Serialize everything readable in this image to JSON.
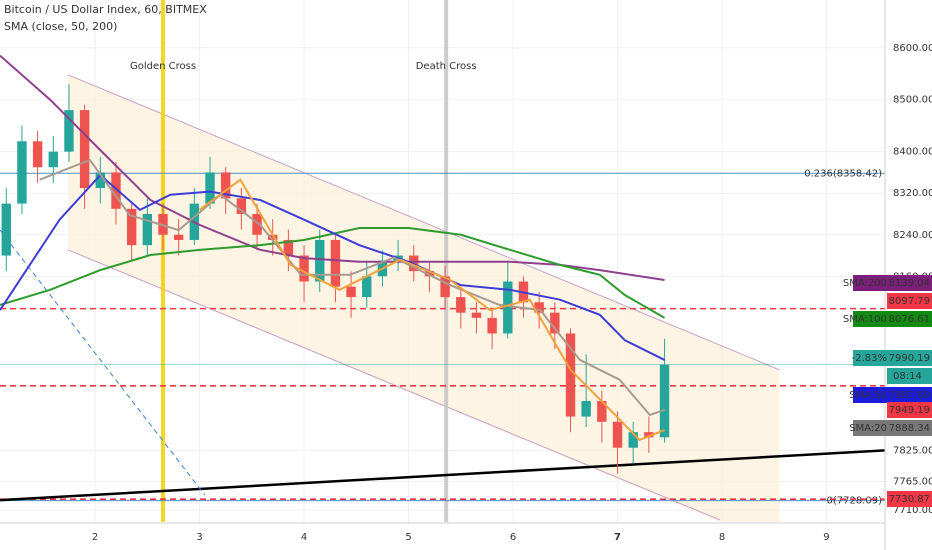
{
  "chart_data": {
    "type": "candlestick",
    "title": "Bitcoin / US Dollar Index, 60, BITMEX",
    "subtitle": "SMA (close, 50, 200)",
    "xlim": [
      1.09,
      9.56
    ],
    "xticks": [
      2,
      3,
      4,
      5,
      6,
      7,
      8,
      9
    ],
    "ylim": [
      7687,
      8692
    ],
    "yticks": [
      {
        "value": 8600,
        "label": "8600.00"
      },
      {
        "value": 8500,
        "label": "8500.00"
      },
      {
        "value": 8400,
        "label": "8400.00"
      },
      {
        "value": 8320,
        "label": "8320.00"
      },
      {
        "value": 8240,
        "label": "8240.00"
      },
      {
        "value": 8160,
        "label": "8160.00"
      },
      {
        "value": 7825,
        "label": "7825.00"
      },
      {
        "value": 7765,
        "label": "7765.00"
      },
      {
        "value": 7710,
        "label": "7710.00"
      }
    ],
    "grid": true,
    "candles": {
      "up_color": "#26a69a",
      "down_color": "#ef5350",
      "x": [
        1.15,
        1.3,
        1.45,
        1.6,
        1.75,
        1.9,
        2.05,
        2.2,
        2.35,
        2.5,
        2.65,
        2.8,
        2.95,
        3.1,
        3.25,
        3.4,
        3.55,
        3.7,
        3.85,
        4.0,
        4.15,
        4.3,
        4.45,
        4.6,
        4.75,
        4.9,
        5.05,
        5.2,
        5.35,
        5.5,
        5.65,
        5.8,
        5.95,
        6.1,
        6.25,
        6.4,
        6.55,
        6.7,
        6.85,
        7.0,
        7.15,
        7.3,
        7.45
      ],
      "open": [
        8200,
        8300,
        8420,
        8370,
        8400,
        8480,
        8330,
        8360,
        8290,
        8220,
        8280,
        8240,
        8230,
        8300,
        8360,
        8310,
        8280,
        8240,
        8230,
        8200,
        8150,
        8230,
        8140,
        8120,
        8160,
        8190,
        8200,
        8170,
        8160,
        8120,
        8090,
        8080,
        8050,
        8150,
        8110,
        8090,
        8050,
        7890,
        7920,
        7880,
        7830,
        7860,
        7850
      ],
      "high": [
        8330,
        8450,
        8440,
        8430,
        8530,
        8490,
        8390,
        8380,
        8300,
        8310,
        8300,
        8270,
        8330,
        8390,
        8370,
        8330,
        8300,
        8270,
        8250,
        8220,
        8250,
        8240,
        8170,
        8190,
        8210,
        8230,
        8220,
        8190,
        8180,
        8140,
        8110,
        8100,
        8190,
        8160,
        8130,
        8110,
        8060,
        8010,
        7940,
        7900,
        7880,
        7890,
        8040
      ],
      "low": [
        8170,
        8280,
        8340,
        8340,
        8380,
        8290,
        8300,
        8260,
        8190,
        8200,
        8210,
        8200,
        8220,
        8290,
        8280,
        8250,
        8210,
        8200,
        8170,
        8110,
        8130,
        8110,
        8080,
        8100,
        8140,
        8170,
        8150,
        8130,
        8100,
        8060,
        8050,
        8020,
        8040,
        8080,
        8060,
        8020,
        7860,
        7870,
        7840,
        7780,
        7800,
        7820,
        7840
      ],
      "close": [
        8300,
        8420,
        8370,
        8400,
        8480,
        8330,
        8360,
        8290,
        8220,
        8280,
        8240,
        8230,
        8300,
        8360,
        8310,
        8280,
        8240,
        8230,
        8200,
        8150,
        8230,
        8140,
        8120,
        8160,
        8190,
        8200,
        8170,
        8160,
        8120,
        8090,
        8080,
        8050,
        8150,
        8110,
        8090,
        8050,
        7890,
        7920,
        7880,
        7830,
        7860,
        7850,
        7990
      ]
    },
    "series": [
      {
        "color": "#8e3f8e",
        "x": [
          1.09,
          1.57,
          2.05,
          2.53,
          3.0,
          3.58,
          4.0,
          4.53,
          5.0,
          5.5,
          5.97,
          6.45,
          6.83,
          7.45
        ],
        "values": [
          8585,
          8500,
          8403,
          8307,
          8259,
          8211,
          8195,
          8188,
          8188,
          8188,
          8188,
          8182,
          8172,
          8153
        ]
      },
      {
        "color": "#2e9b2e",
        "x": [
          1.09,
          1.57,
          2.05,
          2.53,
          3.0,
          3.58,
          4.0,
          4.53,
          5.0,
          5.5,
          5.97,
          6.45,
          6.83,
          7.07,
          7.45
        ],
        "values": [
          8105,
          8134,
          8172,
          8201,
          8211,
          8220,
          8230,
          8253,
          8253,
          8240,
          8211,
          8182,
          8163,
          8124,
          8080
        ]
      },
      {
        "color": "#3c3cd8",
        "x": [
          1.09,
          1.28,
          1.66,
          2.05,
          2.43,
          2.72,
          3.1,
          3.58,
          4.0,
          4.53,
          5.0,
          5.5,
          5.97,
          6.45,
          6.83,
          7.07,
          7.45
        ],
        "values": [
          8095,
          8153,
          8269,
          8355,
          8288,
          8317,
          8323,
          8307,
          8269,
          8220,
          8188,
          8143,
          8134,
          8115,
          8086,
          8037,
          7999
        ]
      },
      {
        "color": "#a89a8e",
        "x": [
          1.47,
          1.95,
          2.33,
          2.8,
          3.2,
          3.58,
          3.97,
          4.44,
          4.86,
          5.4,
          5.87,
          6.26,
          6.64,
          7.02,
          7.31,
          7.45
        ],
        "values": [
          8346,
          8384,
          8278,
          8249,
          8317,
          8259,
          8163,
          8163,
          8196,
          8143,
          8105,
          8095,
          7999,
          7961,
          7893,
          7903
        ]
      },
      {
        "color": "#f2a13c",
        "x": [
          3.0,
          3.39,
          3.87,
          4.34,
          4.92,
          5.4,
          5.78,
          6.16,
          6.55,
          6.93,
          7.21,
          7.45
        ],
        "values": [
          8288,
          8346,
          8182,
          8134,
          8192,
          8153,
          8095,
          8115,
          7980,
          7903,
          7845,
          7864
        ]
      }
    ],
    "events": [
      {
        "label": "Golden Cross",
        "x": 2.65,
        "color": "#f5d000"
      },
      {
        "label": "Death Cross",
        "x": 5.36,
        "color": "#c4c4c4"
      }
    ],
    "fib_levels": [
      {
        "label": "0.236(8358.42)",
        "value": 8358.42,
        "color": "#4a90c8"
      },
      {
        "label": "0(7728.09)",
        "value": 7728.09,
        "color": "#4a90c8"
      }
    ],
    "channel": {
      "upper": [
        [
          1.74,
          8548
        ],
        [
          8.55,
          7980
        ]
      ],
      "lower": [
        [
          1.74,
          8211
        ],
        [
          7.98,
          7691
        ]
      ],
      "fill": [
        [
          1.74,
          8548
        ],
        [
          8.55,
          7980
        ],
        [
          8.55,
          7687
        ],
        [
          7.98,
          7687
        ],
        [
          1.74,
          8211
        ]
      ],
      "color": "#c9a0c9",
      "fill_color": "#fdf1dc"
    },
    "trendlines": [
      {
        "points": [
          [
            1.09,
            7729
          ],
          [
            9.56,
            7825
          ]
        ],
        "color": "#000000",
        "width": 2.5,
        "dashed": false
      },
      {
        "points": [
          [
            1.09,
            8249
          ],
          [
            3.05,
            7739
          ]
        ],
        "color": "#3b7fd4",
        "width": 1,
        "dashed": true
      }
    ],
    "price_tags": [
      {
        "name": "SMA:200",
        "value": 8139.04,
        "color": "#7b1f7b"
      },
      {
        "value": 8097.79,
        "color": "#f23645",
        "line": "dashed"
      },
      {
        "name": "SMA:100",
        "value": 8076.61,
        "color": "#118a11"
      },
      {
        "name": "-2.83%",
        "value": 7990.19,
        "color": "#26a69a",
        "line": "solid"
      },
      {
        "name": "SMA:50",
        "value": 7987.69,
        "color": "#1c1cdc"
      },
      {
        "value": 7949.19,
        "color": "#f23645",
        "line": "dashed"
      },
      {
        "name": "SMA:20",
        "value": 7888.34,
        "color": "#777777"
      },
      {
        "value": 7730.87,
        "color": "#f23645",
        "line": "dashed"
      }
    ],
    "countdown": "08:14"
  }
}
